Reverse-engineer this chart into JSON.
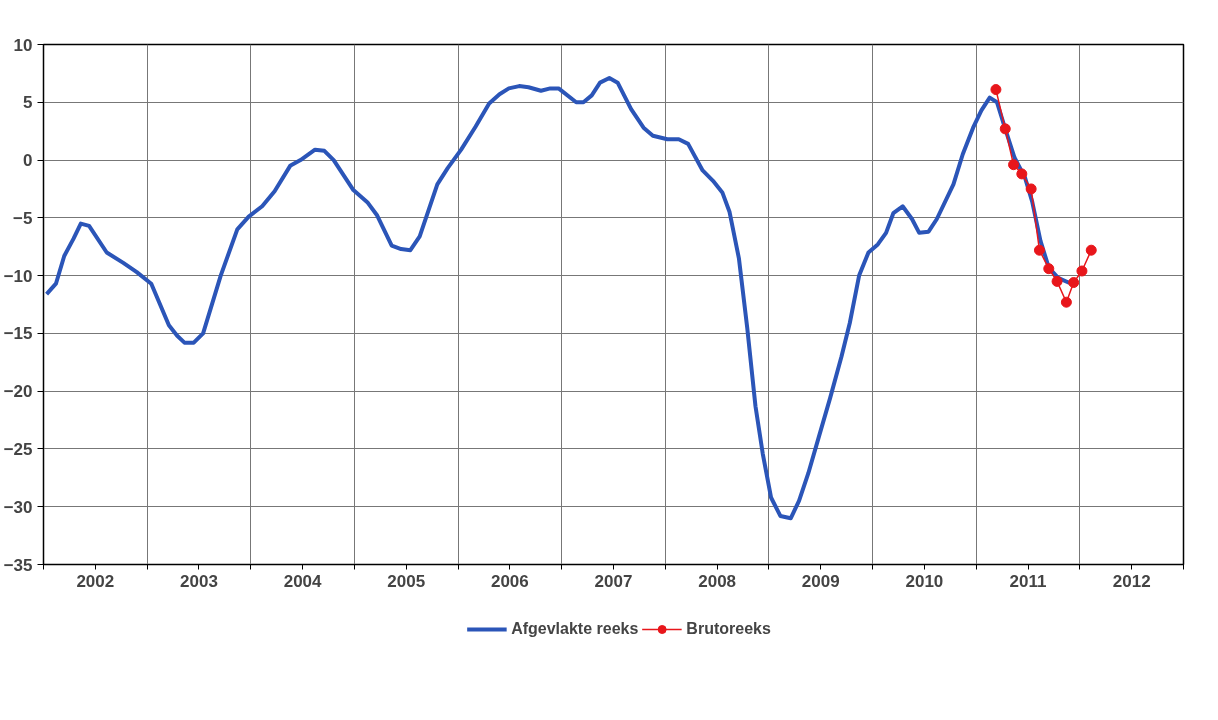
{
  "chart_data": {
    "type": "line",
    "xlim": [
      2001.5,
      2012.5
    ],
    "ylim": [
      -35,
      10
    ],
    "yticks": [
      -35,
      -30,
      -25,
      -20,
      -15,
      -10,
      -5,
      0,
      5,
      10
    ],
    "xticks": [
      {
        "value": 2001.5,
        "label": null
      },
      2002,
      {
        "value": 2002.5,
        "label": null
      },
      2003,
      {
        "value": 2003.5,
        "label": null
      },
      2004,
      {
        "value": 2004.5,
        "label": null
      },
      2005,
      {
        "value": 2005.5,
        "label": null
      },
      2006,
      {
        "value": 2006.5,
        "label": null
      },
      2007,
      {
        "value": 2007.5,
        "label": null
      },
      2008,
      {
        "value": 2008.5,
        "label": null
      },
      2009,
      {
        "value": 2009.5,
        "label": null
      },
      2010,
      {
        "value": 2010.5,
        "label": null
      },
      2011,
      {
        "value": 2011.5,
        "label": null
      },
      2012,
      {
        "value": 2012.5,
        "label": null
      }
    ],
    "grid": true,
    "legend": "bottom",
    "series": [
      {
        "name": "Afgevlakte reeks",
        "color": "#2b55b8",
        "marker": "none",
        "x": [
          2001.53,
          2001.62,
          2001.7,
          2001.79,
          2001.86,
          2001.94,
          2002.11,
          2002.27,
          2002.4,
          2002.54,
          2002.71,
          2002.79,
          2002.86,
          2002.95,
          2003.04,
          2003.21,
          2003.37,
          2003.48,
          2003.61,
          2003.73,
          2003.88,
          2003.98,
          2004.12,
          2004.21,
          2004.3,
          2004.49,
          2004.63,
          2004.72,
          2004.86,
          2004.95,
          2005.04,
          2005.13,
          2005.3,
          2005.4,
          2005.53,
          2005.67,
          2005.8,
          2005.9,
          2005.99,
          2006.09,
          2006.18,
          2006.3,
          2006.39,
          2006.47,
          2006.64,
          2006.71,
          2006.79,
          2006.87,
          2006.96,
          2007.04,
          2007.17,
          2007.29,
          2007.38,
          2007.52,
          2007.63,
          2007.72,
          2007.86,
          2007.96,
          2008.05,
          2008.12,
          2008.21,
          2008.29,
          2008.37,
          2008.44,
          2008.52,
          2008.61,
          2008.71,
          2008.79,
          2008.88,
          2008.98,
          2009.09,
          2009.2,
          2009.28,
          2009.37,
          2009.46,
          2009.55,
          2009.63,
          2009.7,
          2009.79,
          2009.88,
          2009.95,
          2010.04,
          2010.12,
          2010.28,
          2010.37,
          2010.47,
          2010.55,
          2010.63,
          2010.7,
          2010.78,
          2010.87,
          2010.97,
          2011.04,
          2011.12,
          2011.2,
          2011.29,
          2011.39,
          2011.45
        ],
        "values": [
          -11.6,
          -10.7,
          -8.3,
          -6.8,
          -5.5,
          -5.7,
          -8.0,
          -8.9,
          -9.7,
          -10.7,
          -14.3,
          -15.2,
          -15.8,
          -15.8,
          -15.0,
          -10.0,
          -6.0,
          -4.9,
          -4.0,
          -2.7,
          -0.5,
          0.0,
          0.9,
          0.8,
          0.0,
          -2.6,
          -3.7,
          -4.8,
          -7.4,
          -7.7,
          -7.8,
          -6.6,
          -2.1,
          -0.7,
          0.9,
          2.9,
          4.9,
          5.7,
          6.2,
          6.4,
          6.3,
          6.0,
          6.2,
          6.2,
          5.0,
          5.0,
          5.6,
          6.7,
          7.1,
          6.7,
          4.4,
          2.8,
          2.1,
          1.8,
          1.8,
          1.4,
          -0.9,
          -1.8,
          -2.8,
          -4.5,
          -8.5,
          -14.5,
          -21.3,
          -25.4,
          -29.2,
          -30.8,
          -31.0,
          -29.5,
          -27.1,
          -24.0,
          -20.6,
          -17.0,
          -14.1,
          -10.0,
          -8.0,
          -7.3,
          -6.3,
          -4.6,
          -4.0,
          -5.1,
          -6.3,
          -6.2,
          -5.1,
          -2.1,
          0.5,
          2.8,
          4.3,
          5.4,
          5.0,
          2.7,
          0.2,
          -1.5,
          -3.6,
          -7.0,
          -9.3,
          -10.2,
          -10.6,
          -10.5
        ]
      },
      {
        "name": "Brutoreeks",
        "color": "#e8161b",
        "marker": "circle",
        "x": [
          2010.69,
          2010.78,
          2010.86,
          2010.94,
          2011.03,
          2011.11,
          2011.2,
          2011.28,
          2011.37,
          2011.44,
          2011.52,
          2011.61
        ],
        "values": [
          6.1,
          2.7,
          -0.4,
          -1.2,
          -2.5,
          -7.8,
          -9.4,
          -10.5,
          -12.3,
          -10.6,
          -9.6,
          -7.8
        ]
      }
    ]
  }
}
